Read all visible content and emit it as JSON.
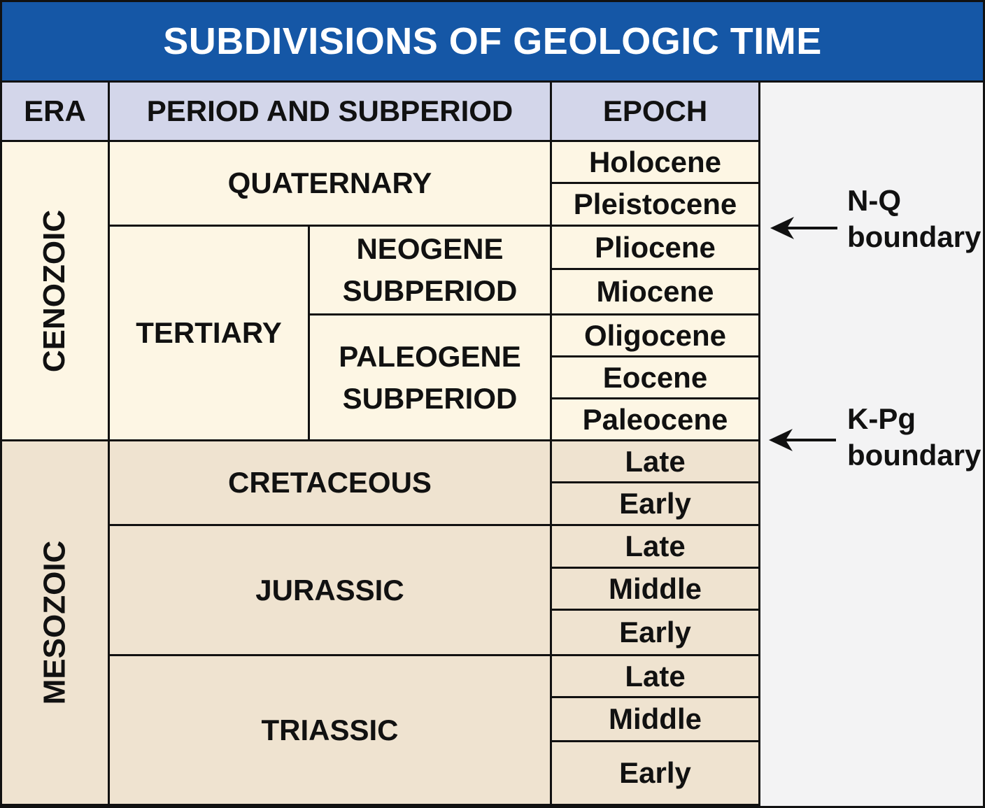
{
  "title": "SUBDIVISIONS OF GEOLOGIC TIME",
  "headers": {
    "era": "ERA",
    "period": "PERIOD AND SUBPERIOD",
    "epoch": "EPOCH"
  },
  "eras": [
    "CENOZOIC",
    "MESOZOIC"
  ],
  "periods": {
    "quaternary": "QUATERNARY",
    "tertiary": "TERTIARY",
    "neogene": [
      "NEOGENE",
      "SUBPERIOD"
    ],
    "paleogene": [
      "PALEOGENE",
      "SUBPERIOD"
    ],
    "cretaceous": "CRETACEOUS",
    "jurassic": "JURASSIC",
    "triassic": "TRIASSIC"
  },
  "epochs": [
    "Holocene",
    "Pleistocene",
    "Pliocene",
    "Miocene",
    "Oligocene",
    "Eocene",
    "Paleocene",
    "Late",
    "Early",
    "Late",
    "Middle",
    "Early",
    "Late",
    "Middle",
    "Early"
  ],
  "boundaries": [
    {
      "line1": "N-Q",
      "line2": "boundary"
    },
    {
      "line1": "K-Pg",
      "line2": "boundary"
    }
  ],
  "colors": {
    "title_bg": "#1557a6",
    "header_bg": "#d3d6ea",
    "cenozoic_bg": "#fdf6e4",
    "mesozoic_bg": "#efe3d0",
    "side_bg": "#f3f3f4"
  }
}
